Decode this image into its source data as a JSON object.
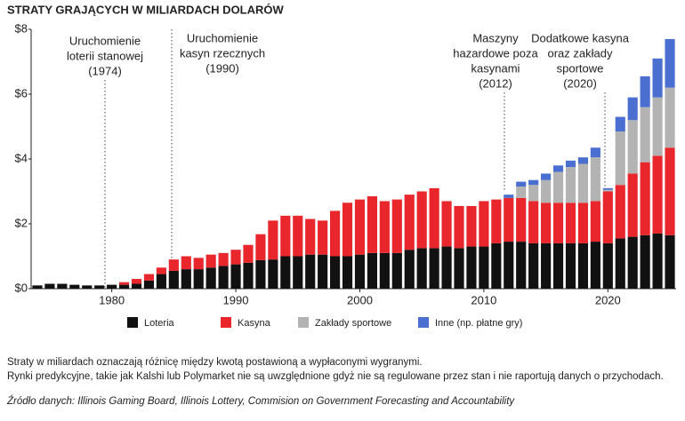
{
  "chart_data": {
    "type": "stacked-bar",
    "title": "STRATY GRAJĄCYCH W MILIARDACH DOLARÓW",
    "x": [
      1974,
      1975,
      1976,
      1977,
      1978,
      1979,
      1980,
      1981,
      1982,
      1983,
      1984,
      1985,
      1986,
      1987,
      1988,
      1989,
      1990,
      1991,
      1992,
      1993,
      1994,
      1995,
      1996,
      1997,
      1998,
      1999,
      2000,
      2001,
      2002,
      2003,
      2004,
      2005,
      2006,
      2007,
      2008,
      2009,
      2010,
      2011,
      2012,
      2013,
      2014,
      2015,
      2016,
      2017,
      2018,
      2019,
      2020,
      2021,
      2022,
      2023,
      2024,
      2025
    ],
    "series": [
      {
        "name": "Loteria",
        "color": "#111111",
        "values": [
          0.1,
          0.15,
          0.15,
          0.12,
          0.1,
          0.1,
          0.12,
          0.12,
          0.15,
          0.25,
          0.45,
          0.55,
          0.6,
          0.6,
          0.65,
          0.7,
          0.75,
          0.8,
          0.88,
          0.9,
          1.0,
          1.0,
          1.05,
          1.05,
          1.0,
          1.0,
          1.05,
          1.1,
          1.1,
          1.1,
          1.2,
          1.25,
          1.25,
          1.3,
          1.25,
          1.3,
          1.3,
          1.4,
          1.45,
          1.45,
          1.4,
          1.4,
          1.4,
          1.4,
          1.4,
          1.45,
          1.4,
          1.55,
          1.6,
          1.65,
          1.7,
          1.65
        ]
      },
      {
        "name": "Kasyna",
        "color": "#e8262b",
        "values": [
          null,
          null,
          null,
          null,
          null,
          null,
          null,
          0.08,
          0.15,
          0.2,
          0.2,
          0.35,
          0.4,
          0.35,
          0.4,
          0.4,
          0.45,
          0.55,
          0.8,
          1.2,
          1.25,
          1.25,
          1.1,
          1.05,
          1.4,
          1.65,
          1.7,
          1.75,
          1.6,
          1.65,
          1.7,
          1.75,
          1.85,
          1.4,
          1.3,
          1.25,
          1.4,
          1.35,
          1.35,
          1.35,
          1.3,
          1.25,
          1.25,
          1.25,
          1.25,
          1.25,
          1.6,
          1.65,
          1.95,
          2.25,
          2.4,
          2.7
        ]
      },
      {
        "name": "Zakłady sportowe",
        "color": "#b3b3b3",
        "values": [
          null,
          null,
          null,
          null,
          null,
          null,
          null,
          null,
          null,
          null,
          null,
          null,
          null,
          null,
          null,
          null,
          null,
          null,
          null,
          null,
          null,
          null,
          null,
          null,
          null,
          null,
          null,
          null,
          null,
          null,
          null,
          null,
          null,
          null,
          null,
          null,
          null,
          null,
          null,
          0.35,
          0.5,
          0.7,
          0.95,
          1.1,
          1.2,
          1.35,
          0.05,
          1.65,
          1.65,
          1.7,
          1.8,
          1.85
        ]
      },
      {
        "name": "Inne (np. płatne gry)",
        "color": "#4a6fd0",
        "values": [
          null,
          null,
          null,
          null,
          null,
          null,
          null,
          null,
          null,
          null,
          null,
          null,
          null,
          null,
          null,
          null,
          null,
          null,
          null,
          null,
          null,
          null,
          null,
          null,
          null,
          null,
          null,
          null,
          null,
          null,
          null,
          null,
          null,
          null,
          null,
          null,
          null,
          null,
          0.1,
          0.15,
          0.15,
          0.2,
          0.2,
          0.2,
          0.2,
          0.3,
          0.05,
          0.45,
          0.7,
          0.95,
          1.2,
          1.5
        ]
      }
    ],
    "xlim": [
      1973.5,
      2025.5
    ],
    "xticks": [
      1980,
      1990,
      2000,
      2010,
      2020
    ],
    "ylim": [
      0,
      8
    ],
    "yticks": [
      {
        "value": 0,
        "label": "$0"
      },
      {
        "value": 2,
        "label": "$2"
      },
      {
        "value": 4,
        "label": "$4"
      },
      {
        "value": 6,
        "label": "$6"
      },
      {
        "value": 8,
        "label": "$8"
      }
    ],
    "grid": false,
    "legend": "bottom",
    "annotations": [
      [
        "Uruchomienie",
        "loterii stanowej",
        "(1974)"
      ],
      [
        "Uruchomienie",
        "kasyn rzecznych",
        "(1990)"
      ],
      [
        "Maszyny",
        "hazardowe poza",
        "kasynami",
        "(2012)"
      ],
      [
        "Dodatkowe kasyna",
        "oraz zakłady",
        "sportowe",
        "(2020)"
      ]
    ],
    "notes": [
      "Straty w miliardach oznaczają różnicę między kwotą postawioną a wypłaconymi wygranymi.",
      "Rynki predykcyjne, takie jak Kalshi lub Polymarket nie są uwzględnione gdyż nie są regulowane przez stan i nie raportują danych o przychodach."
    ],
    "source": "Źródło danych: Illinois Gaming Board, Illinois Lottery, Commision on Government Forecasting and Accountability"
  }
}
